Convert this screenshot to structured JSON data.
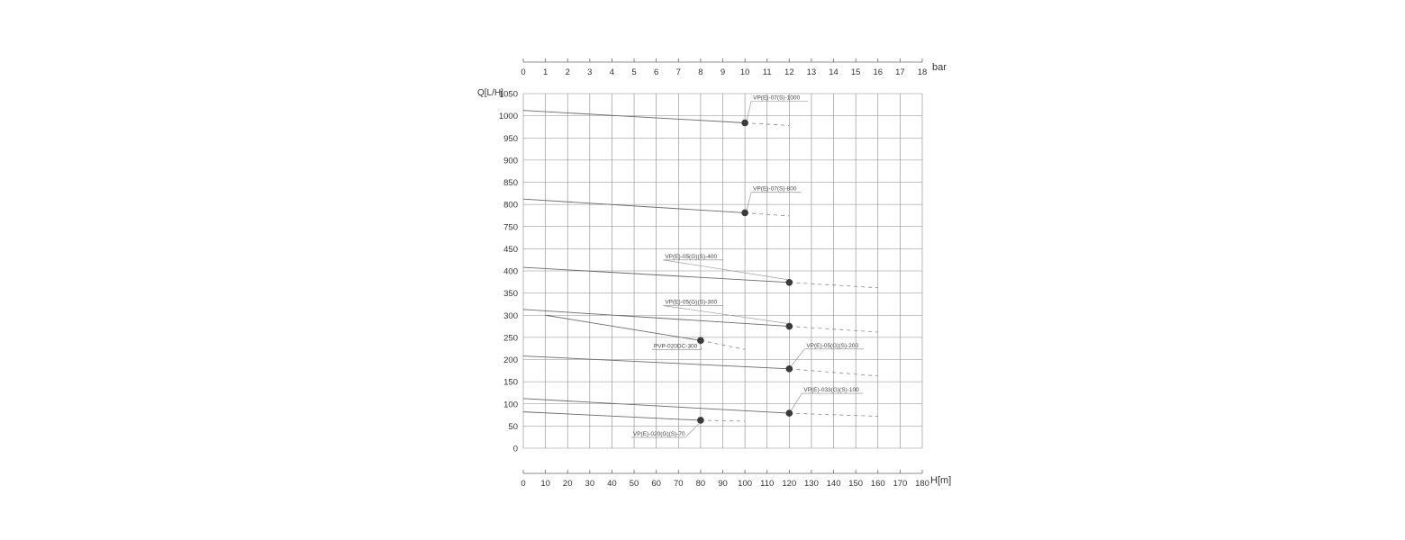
{
  "chart_data": {
    "type": "line",
    "title": "",
    "ylabel": "Q[L/H]",
    "xlabel": "H[m]",
    "top_axis_label": "bar",
    "top_axis_ticks": [
      "0",
      "1",
      "2",
      "3",
      "4",
      "5",
      "6",
      "7",
      "8",
      "9",
      "10",
      "11",
      "12",
      "13",
      "14",
      "15",
      "16",
      "17",
      "18"
    ],
    "x_ticks": [
      "0",
      "10",
      "20",
      "30",
      "40",
      "50",
      "60",
      "70",
      "80",
      "90",
      "100",
      "110",
      "120",
      "130",
      "140",
      "150",
      "160",
      "170",
      "180"
    ],
    "y_ticks": [
      "0",
      "50",
      "100",
      "150",
      "200",
      "250",
      "300",
      "350",
      "400",
      "450",
      "750",
      "800",
      "850",
      "900",
      "950",
      "1000",
      "1050"
    ],
    "xlim": [
      0,
      180
    ],
    "y_axis_note": "broken scale: 0-450 then 750-1050, equal spacing per tick",
    "grid": true,
    "legend": "inline labels with leader lines",
    "series": [
      {
        "name": "VP(E)-07(S)-1000",
        "solid": [
          [
            0,
            1012
          ],
          [
            100,
            984
          ]
        ],
        "dashed": [
          [
            100,
            984
          ],
          [
            120,
            978
          ]
        ],
        "rated_point": [
          100,
          984
        ]
      },
      {
        "name": "VP(E)-07(S)-800",
        "solid": [
          [
            0,
            812
          ],
          [
            100,
            781
          ]
        ],
        "dashed": [
          [
            100,
            781
          ],
          [
            120,
            774
          ]
        ],
        "rated_point": [
          100,
          781
        ]
      },
      {
        "name": "VP(E)-05(G)(S)-400",
        "solid": [
          [
            0,
            408
          ],
          [
            120,
            374
          ]
        ],
        "dashed": [
          [
            120,
            374
          ],
          [
            160,
            362
          ]
        ],
        "rated_point": [
          120,
          374
        ]
      },
      {
        "name": "VP(E)-05(G)(S)-300",
        "solid": [
          [
            0,
            313
          ],
          [
            120,
            275
          ]
        ],
        "dashed": [
          [
            120,
            275
          ],
          [
            160,
            262
          ]
        ],
        "rated_point": [
          120,
          275
        ]
      },
      {
        "name": "PVP-020DC-300",
        "solid": [
          [
            10,
            300
          ],
          [
            80,
            243
          ]
        ],
        "dashed": [
          [
            80,
            243
          ],
          [
            100,
            223
          ]
        ],
        "rated_point": [
          80,
          243
        ]
      },
      {
        "name": "VP(E)-05(G)(S)-200",
        "solid": [
          [
            0,
            208
          ],
          [
            120,
            179
          ]
        ],
        "dashed": [
          [
            120,
            179
          ],
          [
            160,
            163
          ]
        ],
        "rated_point": [
          120,
          179
        ]
      },
      {
        "name": "VP(E)-033(G)(S)-100",
        "solid": [
          [
            0,
            112
          ],
          [
            120,
            79
          ]
        ],
        "dashed": [
          [
            120,
            79
          ],
          [
            160,
            72
          ]
        ],
        "rated_point": [
          120,
          79
        ]
      },
      {
        "name": "VP(E)-020(G)(S)-70",
        "solid": [
          [
            0,
            82
          ],
          [
            80,
            63
          ]
        ],
        "dashed": [
          [
            80,
            63
          ],
          [
            100,
            61
          ]
        ],
        "rated_point": [
          80,
          63
        ]
      }
    ]
  }
}
